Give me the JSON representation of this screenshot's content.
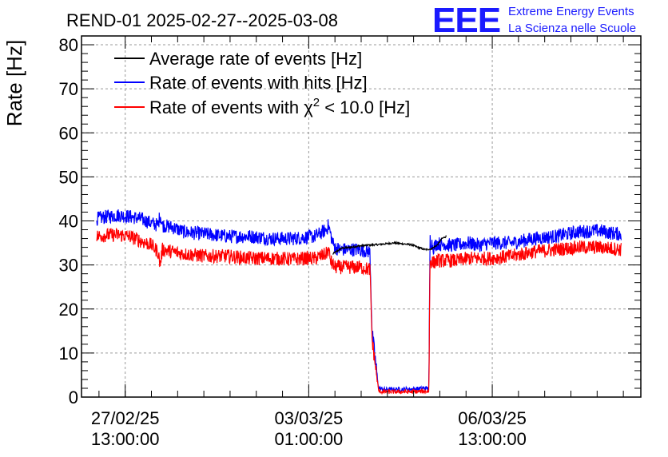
{
  "header": {
    "title": "REND-01 2025-02-27--2025-03-08",
    "logo_letters": "EEE",
    "logo_line1": "Extreme Energy Events",
    "logo_line2": "La Scienza nelle Scuole"
  },
  "colors": {
    "black_series": "#000000",
    "blue_series": "#0000ff",
    "red_series": "#ff0000",
    "logo": "#1a1aff",
    "grid": "#999999"
  },
  "chart_data": {
    "type": "line",
    "title": "REND-01 2025-02-27--2025-03-08",
    "xlabel": "",
    "ylabel": "Rate [Hz]",
    "x_unit": "hours since 2025-02-27 00:00",
    "xlim": [
      -7,
      249
    ],
    "ylim": [
      0,
      82
    ],
    "yticks": [
      0,
      10,
      20,
      30,
      40,
      50,
      60,
      70,
      80
    ],
    "xticks": [
      {
        "x": 13,
        "label_date": "27/02/25",
        "label_time": "13:00:00"
      },
      {
        "x": 97,
        "label_date": "03/03/25",
        "label_time": "01:00:00"
      },
      {
        "x": 181,
        "label_date": "06/03/25",
        "label_time": "13:00:00"
      }
    ],
    "grid": true,
    "legend_position": "top-left",
    "noise_amplitude": {
      "Average rate of events [Hz]": 0.2,
      "Rate of events with hits [Hz]": 1.6,
      "Rate of events with χ² < 10.0 [Hz]": 1.6
    },
    "series": [
      {
        "name": "Average rate of events [Hz]",
        "legend_prefix": "Average rate of events [Hz]",
        "legend_sup": "",
        "legend_suffix": "",
        "color": "#000000",
        "x": [
          108,
          112,
          116,
          120,
          124,
          128,
          132,
          136,
          140,
          144,
          147,
          150,
          153,
          156,
          158,
          160
        ],
        "y": [
          32.5,
          33.8,
          34.0,
          34.3,
          34.5,
          34.6,
          34.8,
          35.0,
          34.8,
          34.6,
          34.0,
          33.5,
          33.6,
          34.6,
          36.0,
          36.5
        ]
      },
      {
        "name": "Rate of events with hits [Hz]",
        "legend_prefix": "Rate of events with hits [Hz]",
        "legend_sup": "",
        "legend_suffix": "",
        "color": "#0000ff",
        "x": [
          0,
          5,
          10,
          15,
          20,
          25,
          28,
          29,
          30,
          35,
          40,
          50,
          60,
          70,
          80,
          90,
          95,
          100,
          105,
          106,
          107,
          108,
          109,
          111,
          115,
          120,
          125,
          126,
          129,
          132,
          138,
          144,
          150,
          152,
          152.5,
          154,
          156,
          158,
          159,
          160,
          165,
          170,
          175,
          180,
          190,
          200,
          210,
          220,
          230,
          235,
          240
        ],
        "y": [
          40.5,
          41,
          41.3,
          41,
          40.5,
          39.5,
          39,
          41.5,
          39,
          38.5,
          37.5,
          37,
          36.5,
          36.5,
          36,
          36,
          36.3,
          36.5,
          38,
          39,
          37,
          35,
          34,
          33.5,
          33.5,
          33.5,
          33,
          15,
          2,
          1.7,
          1.8,
          1.8,
          2,
          2,
          36,
          34,
          35,
          34.5,
          35,
          34.5,
          34.5,
          35,
          34.5,
          35,
          35,
          36,
          36.5,
          37.5,
          37.8,
          37.3,
          37
        ]
      },
      {
        "name": "Rate of events with χ² < 10.0 [Hz]",
        "legend_prefix": "Rate of events with χ",
        "legend_sup": "2",
        "legend_suffix": " < 10.0 [Hz]",
        "color": "#ff0000",
        "x": [
          0,
          5,
          10,
          15,
          20,
          25,
          28,
          29,
          30,
          35,
          40,
          50,
          60,
          70,
          80,
          90,
          95,
          100,
          105,
          106,
          107,
          108,
          109,
          111,
          115,
          120,
          125,
          126,
          129,
          132,
          138,
          144,
          150,
          152,
          152.5,
          154,
          156,
          158,
          159,
          160,
          165,
          170,
          175,
          180,
          190,
          200,
          210,
          220,
          230,
          235,
          240
        ],
        "y": [
          36.5,
          36.8,
          36.8,
          36.5,
          35.5,
          34.5,
          33,
          30,
          33.5,
          33,
          32.5,
          32,
          32,
          31.5,
          31.5,
          31.3,
          31.5,
          31.5,
          32.5,
          33.5,
          31,
          30,
          29.5,
          29.5,
          29.5,
          29.5,
          29,
          13,
          1.3,
          1.2,
          1.2,
          1.2,
          1.3,
          1.3,
          31,
          30.5,
          31,
          31,
          31,
          31,
          31,
          31.5,
          31.5,
          31.5,
          32,
          33,
          33.5,
          34,
          34,
          33.8,
          33.5
        ]
      }
    ]
  }
}
